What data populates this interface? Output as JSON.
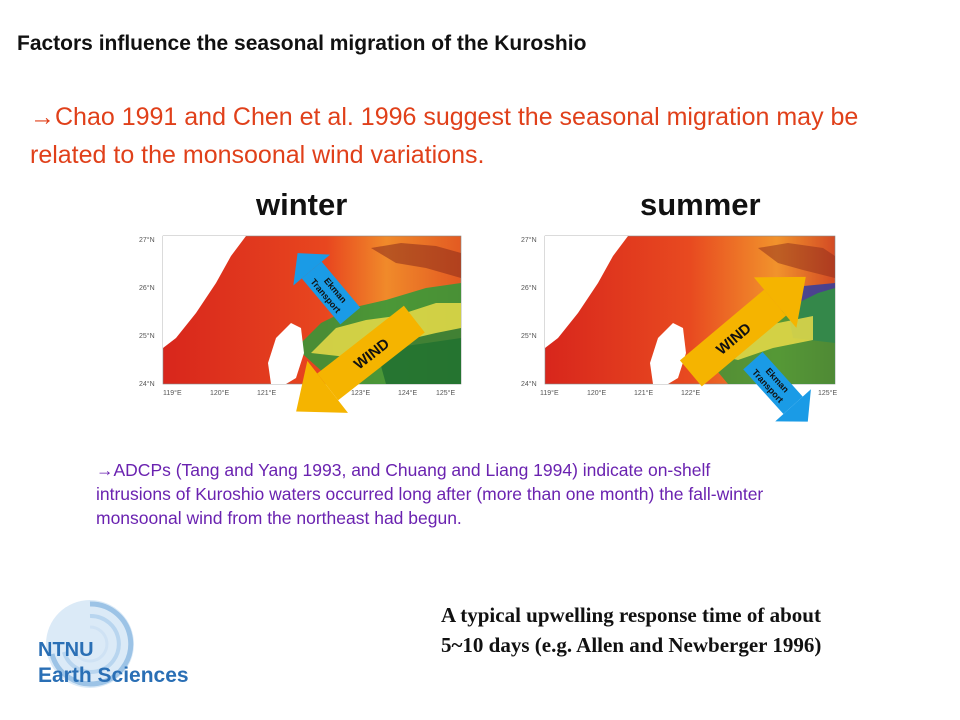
{
  "title": "Factors influence the seasonal migration of the Kuroshio",
  "bullet1": {
    "arrow": "→",
    "text": "Chao 1991 and Chen et al. 1996 suggest the seasonal migration may be related to the monsoonal wind variations."
  },
  "panels": {
    "winter": {
      "label": "winter",
      "wind_label": "WIND",
      "ekman_label_1": "Ekman",
      "ekman_label_2": "Transport"
    },
    "summer": {
      "label": "summer",
      "wind_label": "WIND",
      "ekman_label_1": "Ekman",
      "ekman_label_2": "Transport"
    },
    "lat_ticks": [
      "27°N",
      "26°N",
      "25°N",
      "24°N"
    ],
    "lon_ticks": [
      "119°E",
      "120°E",
      "121°E",
      "122°E",
      "123°E",
      "124°E",
      "125°E"
    ]
  },
  "bullet2": {
    "arrow": "→",
    "text": "ADCPs (Tang and Yang 1993, and Chuang and Liang 1994) indicate on-shelf intrusions of Kuroshio waters occurred long after (more than one month) the fall-winter monsoonal wind from the northeast had begun."
  },
  "note": {
    "line1": "A typical upwelling response time of about",
    "line2": "5~10 days (e.g. Allen and Newberger 1996)"
  },
  "logo": {
    "text_top": "NTNU",
    "text_bottom": "Earth Sciences"
  },
  "colors": {
    "title": "#111111",
    "bullet1": "#e0401a",
    "bullet2": "#6a22b0",
    "wind_arrow": "#f5b400",
    "ekman_arrow": "#1a9be6",
    "logo_blue": "#2a6fb5"
  }
}
